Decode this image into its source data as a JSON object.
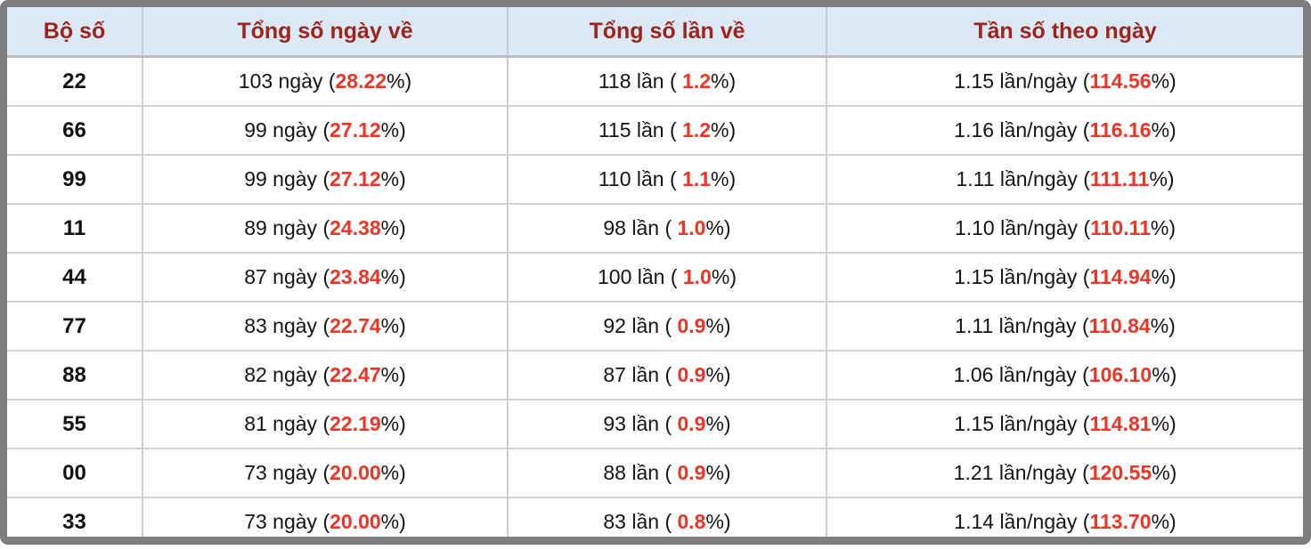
{
  "colors": {
    "frame": "#7e7e7e",
    "header_bg": "#dbe9f6",
    "header_text": "#9e241b",
    "highlight_red": "#ee3424",
    "body_text": "#141414",
    "grid_line": "#cccccc"
  },
  "table": {
    "columns": [
      {
        "label": "Bộ số"
      },
      {
        "label": "Tổng số ngày về"
      },
      {
        "label": "Tổng số lần về"
      },
      {
        "label": "Tần số theo ngày"
      }
    ],
    "rows": [
      {
        "pair": "22",
        "days": [
          "103 ngày (",
          "28.22",
          "%)"
        ],
        "times": [
          "118 lần ( ",
          "1.2",
          "%)"
        ],
        "freq": [
          "1.15 lần/ngày (",
          "114.56",
          "%)"
        ]
      },
      {
        "pair": "66",
        "days": [
          "99 ngày (",
          "27.12",
          "%)"
        ],
        "times": [
          "115 lần ( ",
          "1.2",
          "%)"
        ],
        "freq": [
          "1.16 lần/ngày (",
          "116.16",
          "%)"
        ]
      },
      {
        "pair": "99",
        "days": [
          "99 ngày (",
          "27.12",
          "%)"
        ],
        "times": [
          "110 lần ( ",
          "1.1",
          "%)"
        ],
        "freq": [
          "1.11 lần/ngày (",
          "111.11",
          "%)"
        ]
      },
      {
        "pair": "11",
        "days": [
          "89 ngày (",
          "24.38",
          "%)"
        ],
        "times": [
          "98 lần ( ",
          "1.0",
          "%)"
        ],
        "freq": [
          "1.10 lần/ngày (",
          "110.11",
          "%)"
        ]
      },
      {
        "pair": "44",
        "days": [
          "87 ngày (",
          "23.84",
          "%)"
        ],
        "times": [
          "100 lần ( ",
          "1.0",
          "%)"
        ],
        "freq": [
          "1.15 lần/ngày (",
          "114.94",
          "%)"
        ]
      },
      {
        "pair": "77",
        "days": [
          "83 ngày (",
          "22.74",
          "%)"
        ],
        "times": [
          "92 lần ( ",
          "0.9",
          "%)"
        ],
        "freq": [
          "1.11 lần/ngày (",
          "110.84",
          "%)"
        ]
      },
      {
        "pair": "88",
        "days": [
          "82 ngày (",
          "22.47",
          "%)"
        ],
        "times": [
          "87 lần ( ",
          "0.9",
          "%)"
        ],
        "freq": [
          "1.06 lần/ngày (",
          "106.10",
          "%)"
        ]
      },
      {
        "pair": "55",
        "days": [
          "81 ngày (",
          "22.19",
          "%)"
        ],
        "times": [
          "93 lần ( ",
          "0.9",
          "%)"
        ],
        "freq": [
          "1.15 lần/ngày (",
          "114.81",
          "%)"
        ]
      },
      {
        "pair": "00",
        "days": [
          "73 ngày (",
          "20.00",
          "%)"
        ],
        "times": [
          "88 lần ( ",
          "0.9",
          "%)"
        ],
        "freq": [
          "1.21 lần/ngày (",
          "120.55",
          "%)"
        ]
      },
      {
        "pair": "33",
        "days": [
          "73 ngày (",
          "20.00",
          "%)"
        ],
        "times": [
          "83 lần ( ",
          "0.8",
          "%)"
        ],
        "freq": [
          "1.14 lần/ngày (",
          "113.70",
          "%)"
        ]
      }
    ]
  }
}
